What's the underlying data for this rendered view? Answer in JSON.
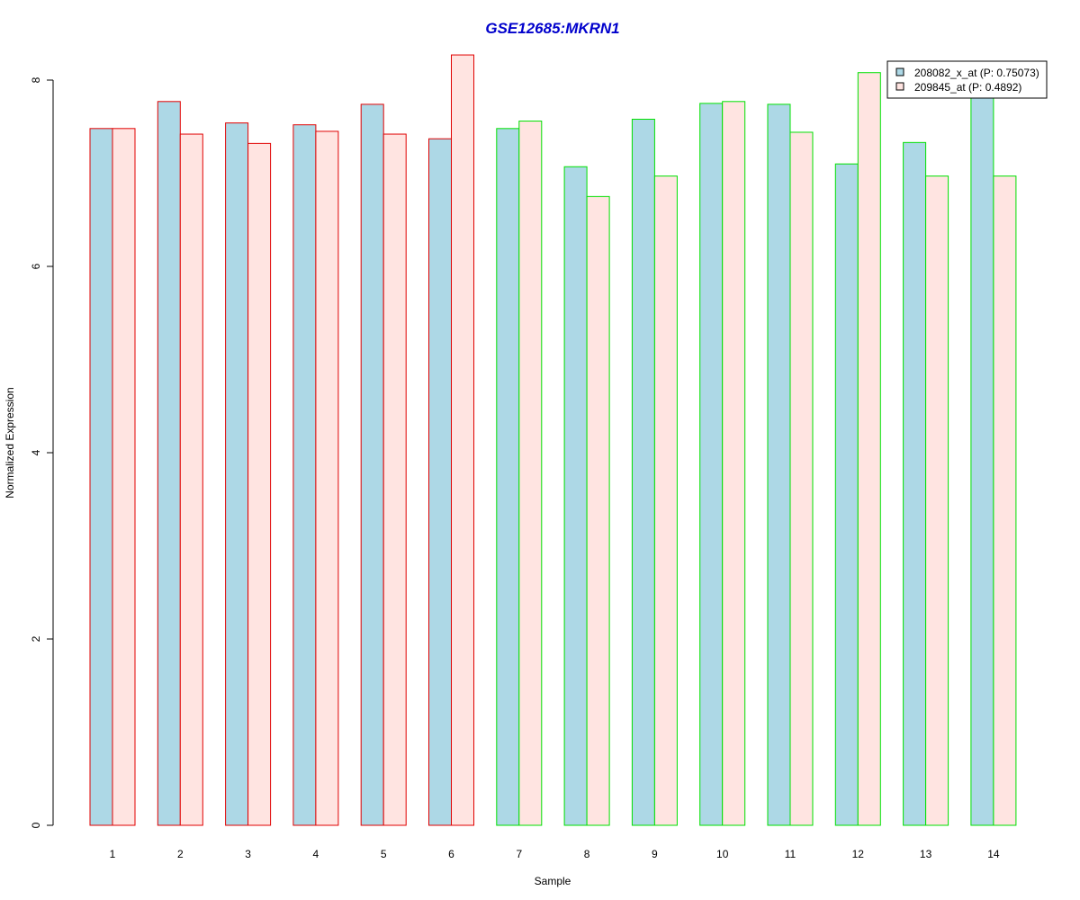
{
  "chart_data": {
    "type": "bar",
    "title": "GSE12685:MKRN1",
    "xlabel": "Sample",
    "ylabel": "Normalized Expression",
    "ylim": [
      0,
      8.8
    ],
    "y_ticks": [
      "0",
      "2",
      "4",
      "6",
      "8"
    ],
    "categories": [
      "1",
      "2",
      "3",
      "4",
      "5",
      "6",
      "7",
      "8",
      "9",
      "10",
      "11",
      "12",
      "13",
      "14"
    ],
    "group_border_colors": [
      "#e00000",
      "#e00000",
      "#e00000",
      "#e00000",
      "#e00000",
      "#e00000",
      "#00e000",
      "#00e000",
      "#00e000",
      "#00e000",
      "#00e000",
      "#00e000",
      "#00e000",
      "#00e000"
    ],
    "series": [
      {
        "name": "208082_x_at (P: 0.75073)",
        "color": "#add8e6",
        "values": [
          7.48,
          7.77,
          7.54,
          7.52,
          7.74,
          7.37,
          7.48,
          7.07,
          7.58,
          7.75,
          7.74,
          7.1,
          7.33,
          7.98
        ]
      },
      {
        "name": "209845_at (P: 0.4892)",
        "color": "#ffe4e1",
        "values": [
          7.48,
          7.42,
          7.32,
          7.45,
          7.42,
          8.27,
          7.56,
          6.75,
          6.97,
          7.77,
          7.44,
          8.08,
          6.97,
          6.97
        ]
      }
    ],
    "legend_position": "top-right",
    "title_color": "#0000cc",
    "grid": false
  }
}
